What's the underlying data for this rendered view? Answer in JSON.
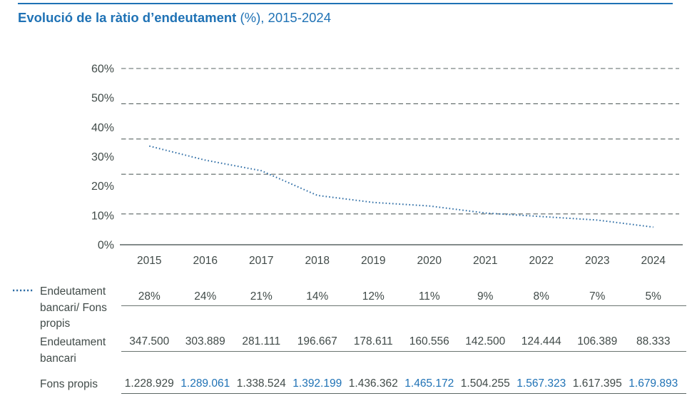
{
  "title": {
    "bold": "Evolució de la ràtio d’endeutament",
    "regular": " (%), 2015-2024"
  },
  "colors": {
    "accent_blue": "#1f72b5",
    "line_blue": "#2f6ea6",
    "text_dark": "#414b49",
    "grid_gray": "#5a6563",
    "separator_gray": "#6a7471"
  },
  "chart_data": {
    "type": "line",
    "title": "Evolució de la ràtio d’endeutament (%), 2015-2024",
    "x": [
      "2015",
      "2016",
      "2017",
      "2018",
      "2019",
      "2020",
      "2021",
      "2022",
      "2023",
      "2024"
    ],
    "series": [
      {
        "name": "Endeutament bancari/ Fons propis",
        "unit": "%",
        "values": [
          28,
          24,
          21,
          14,
          12,
          11,
          9,
          8,
          7,
          5
        ],
        "style": "dotted",
        "color": "#2f6ea6"
      }
    ],
    "y_ticks": [
      "60%",
      "50%",
      "40%",
      "30%",
      "20%",
      "10%",
      "0%"
    ],
    "ylim": [
      0,
      60
    ],
    "grid": "horizontal-dashed",
    "legend_position": "left-of-table"
  },
  "table": {
    "rows": [
      {
        "label": "Endeutament bancari/ Fons propis",
        "legend": "dotted-line-marker",
        "values": [
          "28%",
          "24%",
          "21%",
          "14%",
          "12%",
          "11%",
          "9%",
          "8%",
          "7%",
          "5%"
        ],
        "blue_indices": []
      },
      {
        "label": "Endeutament bancari",
        "values": [
          "347.500",
          "303.889",
          "281.111",
          "196.667",
          "178.611",
          "160.556",
          "142.500",
          "124.444",
          "106.389",
          "88.333"
        ],
        "blue_indices": []
      },
      {
        "label": "Fons propis",
        "values": [
          "1.228.929",
          "1.289.061",
          "1.338.524",
          "1.392.199",
          "1.436.362",
          "1.465.172",
          "1.504.255",
          "1.567.323",
          "1.617.395",
          "1.679.893"
        ],
        "blue_indices": [
          1,
          3,
          5,
          7,
          9
        ]
      }
    ]
  }
}
